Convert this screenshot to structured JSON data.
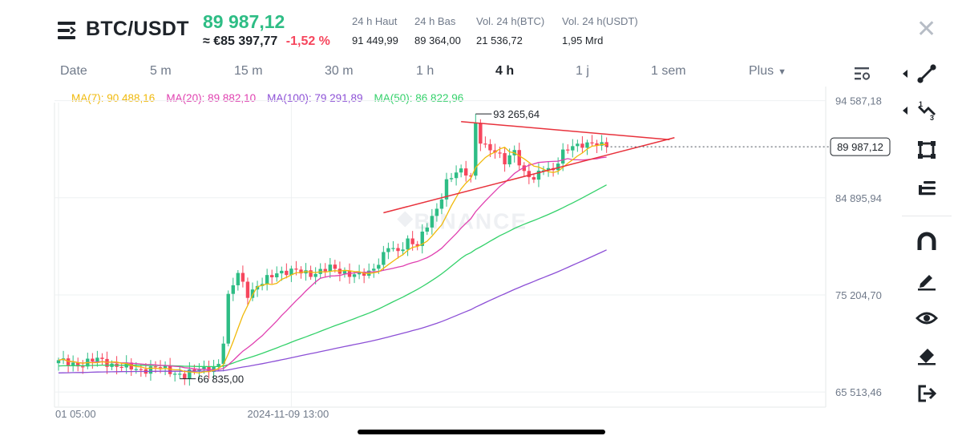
{
  "header": {
    "pair": "BTC/USDT",
    "last_price": "89 987,12",
    "fiat_equiv": "≈ €85 397,77",
    "change_pct": "-1,52 %",
    "stats": [
      {
        "label": "24 h Haut",
        "value": "91 449,99"
      },
      {
        "label": "24 h Bas",
        "value": "89 364,00"
      },
      {
        "label": "Vol. 24 h(BTC)",
        "value": "21 536,72"
      },
      {
        "label": "Vol. 24 h(USDT)",
        "value": "1,95 Mrd"
      }
    ]
  },
  "timeframes": [
    "Date",
    "5 m",
    "15 m",
    "30 m",
    "1 h",
    "4 h",
    "1 j",
    "1 sem",
    "Plus"
  ],
  "active_timeframe": "4 h",
  "indicators": [
    {
      "label": "MA(7): 90 488,16",
      "color": "#f0b90b"
    },
    {
      "label": "MA(20): 89 882,10",
      "color": "#e040b0"
    },
    {
      "label": "MA(100): 79 291,89",
      "color": "#8c4fd6"
    },
    {
      "label": "MA(50): 86 822,96",
      "color": "#33d16a"
    }
  ],
  "toolbar_icons": [
    "trend-line-icon",
    "fibonacci-icon",
    "rectangle-icon",
    "text-lines-icon",
    "magnet-icon",
    "pencil-icon",
    "eye-icon",
    "eraser-icon",
    "exit-icon"
  ],
  "chart_data": {
    "type": "candlestick",
    "watermark": "BINANCE",
    "y_ticks": [
      "94 587,18",
      "84 895,94",
      "75 204,70",
      "65 513,46"
    ],
    "y_tick_values": [
      94587.18,
      84895.94,
      75204.7,
      65513.46
    ],
    "ylim": [
      64000,
      96000
    ],
    "x_labels": [
      "01 05:00",
      "2024-11-09 13:00"
    ],
    "x_label_indices": [
      0,
      48
    ],
    "current_price": 89987.12,
    "current_price_label": "89 987,12",
    "high_label": "93 265,64",
    "high_value": 93265.64,
    "high_index": 86,
    "low_label": "66 835,00",
    "low_value": 66835.0,
    "low_index": 25,
    "candle_count": 114,
    "colors": {
      "up": "#2ebd85",
      "down": "#f6465d",
      "ma7": "#f0b90b",
      "ma20": "#e040b0",
      "ma50": "#33d16a",
      "ma100": "#8c4fd6",
      "trendline": "#e8323c"
    },
    "anchors": [
      [
        0,
        68500
      ],
      [
        4,
        68300
      ],
      [
        8,
        68700
      ],
      [
        12,
        68200
      ],
      [
        16,
        67700
      ],
      [
        20,
        68000
      ],
      [
        24,
        67400
      ],
      [
        25,
        67000
      ],
      [
        27,
        67400
      ],
      [
        30,
        67800
      ],
      [
        33,
        68300
      ],
      [
        34,
        70500
      ],
      [
        35,
        74800
      ],
      [
        37,
        77500
      ],
      [
        39,
        75400
      ],
      [
        41,
        75900
      ],
      [
        45,
        77600
      ],
      [
        48,
        77500
      ],
      [
        52,
        77400
      ],
      [
        56,
        77800
      ],
      [
        60,
        77400
      ],
      [
        62,
        77100
      ],
      [
        64,
        77300
      ],
      [
        66,
        78600
      ],
      [
        68,
        80100
      ],
      [
        70,
        79200
      ],
      [
        72,
        80700
      ],
      [
        74,
        80400
      ],
      [
        76,
        82000
      ],
      [
        78,
        83600
      ],
      [
        80,
        86700
      ],
      [
        82,
        87500
      ],
      [
        84,
        87200
      ],
      [
        86,
        86700
      ],
      [
        87,
        90800
      ],
      [
        88,
        90100
      ],
      [
        90,
        89300
      ],
      [
        92,
        88500
      ],
      [
        94,
        89800
      ],
      [
        96,
        87200
      ],
      [
        98,
        86600
      ],
      [
        100,
        88100
      ],
      [
        102,
        87700
      ],
      [
        104,
        89200
      ],
      [
        106,
        90100
      ],
      [
        108,
        90400
      ],
      [
        110,
        90200
      ],
      [
        112,
        90000
      ],
      [
        113,
        89987.12
      ]
    ],
    "trendlines": [
      {
        "name": "resistance",
        "from": [
          83,
          92500
        ],
        "to": [
          126,
          90700
        ]
      },
      {
        "name": "support",
        "from": [
          67,
          83400
        ],
        "to": [
          127,
          90900
        ]
      }
    ]
  }
}
